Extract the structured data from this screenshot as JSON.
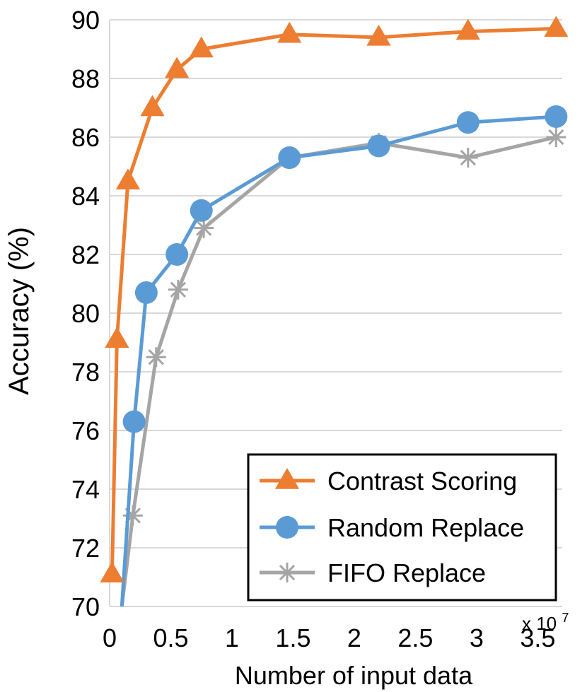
{
  "chart_data": {
    "type": "line",
    "xlabel": "Number of input data",
    "ylabel": "Accuracy (%)",
    "x_scale_note": "x 10",
    "x_scale_exp": "7",
    "xlim": [
      0,
      3.7
    ],
    "ylim": [
      70,
      90
    ],
    "x_ticks": [
      0,
      0.5,
      1,
      1.5,
      2,
      2.5,
      3,
      3.5
    ],
    "x_tick_labels": [
      "0",
      "0.5",
      "1",
      "1.5",
      "2",
      "2.5",
      "3",
      "3.5"
    ],
    "y_ticks": [
      70,
      72,
      74,
      76,
      78,
      80,
      82,
      84,
      86,
      88,
      90
    ],
    "y_tick_labels": [
      "70",
      "72",
      "74",
      "76",
      "78",
      "80",
      "82",
      "84",
      "86",
      "88",
      "90"
    ],
    "grid": "horizontal",
    "legend_position": "bottom-right",
    "series": [
      {
        "name": "Contrast Scoring",
        "color": "#ED7D31",
        "marker": "triangle",
        "x": [
          0.02,
          0.06,
          0.15,
          0.35,
          0.55,
          0.75,
          1.47,
          2.2,
          2.93,
          3.65
        ],
        "y": [
          71.1,
          79.1,
          84.5,
          87.0,
          88.3,
          89.0,
          89.5,
          89.4,
          89.6,
          89.7
        ]
      },
      {
        "name": "Random Replace",
        "color": "#5B9BD5",
        "marker": "circle",
        "x": [
          0.1,
          0.2,
          0.3,
          0.55,
          0.75,
          1.47,
          2.2,
          2.93,
          3.65
        ],
        "y": [
          70.0,
          76.3,
          80.7,
          82.0,
          83.5,
          85.3,
          85.7,
          86.5,
          86.7
        ],
        "marker_from": 1
      },
      {
        "name": "FIFO Replace",
        "color": "#A5A5A5",
        "marker": "star",
        "x": [
          0.1,
          0.19,
          0.38,
          0.56,
          0.77,
          1.47,
          2.2,
          2.93,
          3.65
        ],
        "y": [
          70.0,
          73.1,
          78.5,
          80.8,
          82.9,
          85.3,
          85.8,
          85.3,
          86.0
        ],
        "marker_from": 1
      }
    ]
  }
}
